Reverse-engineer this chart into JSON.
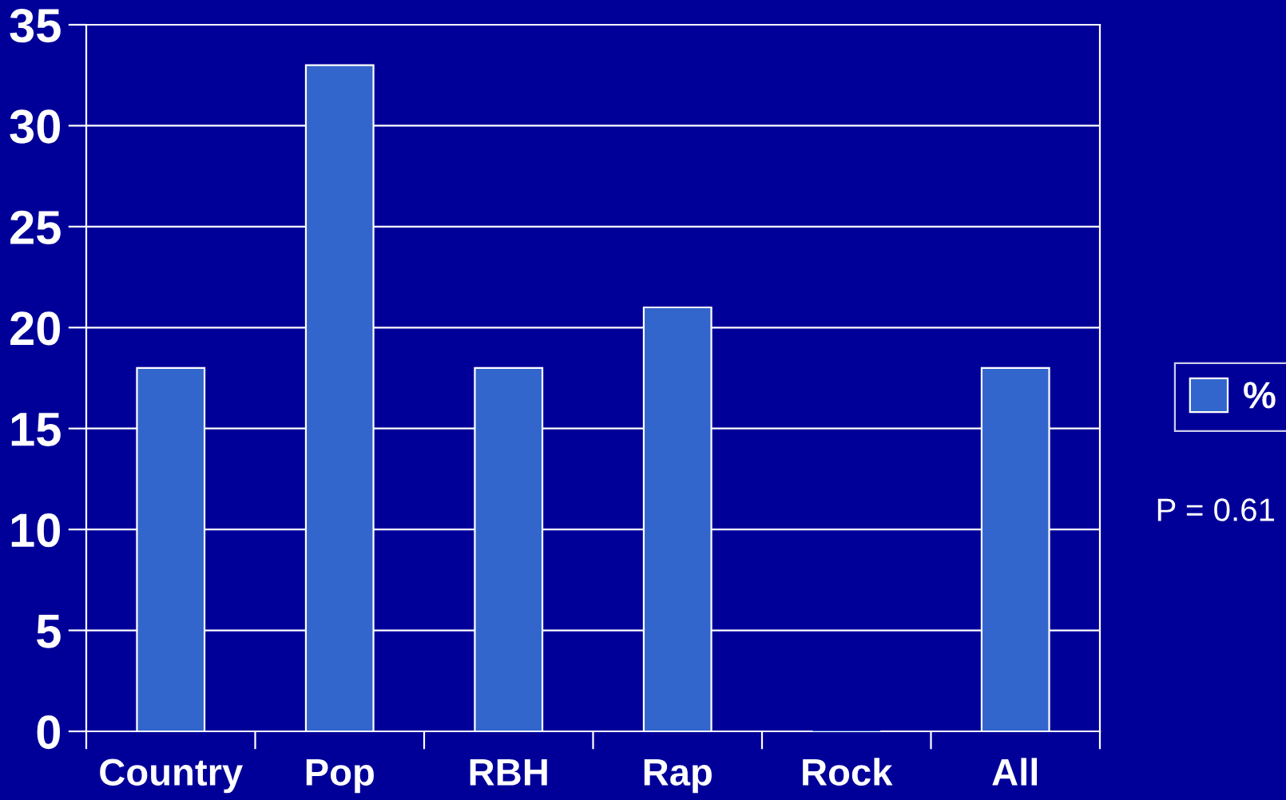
{
  "chart_data": {
    "type": "bar",
    "categories": [
      "Country",
      "Pop",
      "RBH",
      "Rap",
      "Rock",
      "All"
    ],
    "series": [
      {
        "name": "%",
        "color": "#3366cc",
        "values": [
          18,
          33,
          18,
          21,
          0,
          18
        ]
      }
    ],
    "ylim": [
      0,
      35
    ],
    "yticks": [
      0,
      5,
      10,
      15,
      20,
      25,
      30,
      35
    ],
    "grid": "y",
    "legend": "right",
    "annotations": [
      "P = 0.61"
    ]
  }
}
